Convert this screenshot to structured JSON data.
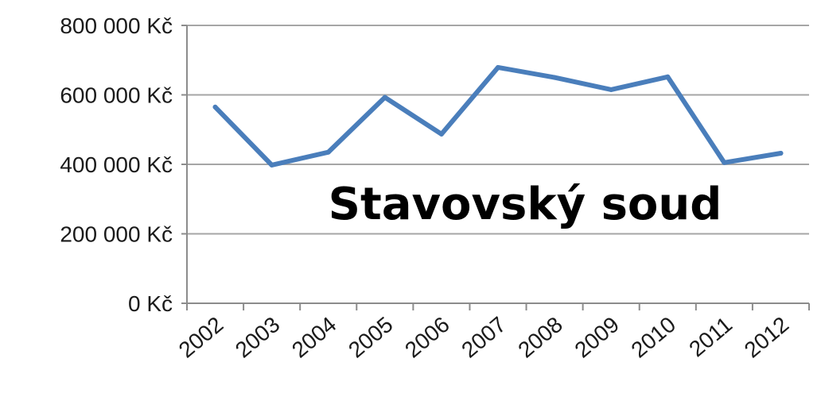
{
  "chart_data": {
    "type": "line",
    "title": "",
    "xlabel": "",
    "ylabel": "",
    "categories": [
      "2002",
      "2003",
      "2004",
      "2005",
      "2006",
      "2007",
      "2008",
      "2009",
      "2010",
      "2011",
      "2012"
    ],
    "series": [
      {
        "values": [
          565000,
          398000,
          435000,
          593000,
          487000,
          679000,
          650000,
          615000,
          652000,
          405000,
          432000
        ]
      }
    ],
    "ylim": [
      0,
      800000
    ],
    "y_ticks": [
      0,
      200000,
      400000,
      600000,
      800000
    ],
    "y_tick_labels": [
      "0 Kč",
      "200 000 Kč",
      "400 000 Kč",
      "600 000 Kč",
      "800 000 Kč"
    ],
    "grid": "horizontal",
    "legend": "none",
    "annotation": "Stavovský soud",
    "colors": {
      "line": "#4a7ebb",
      "grid": "#a6a6a6",
      "axis": "#8c8c8c",
      "text": "#1a1a1a"
    }
  }
}
